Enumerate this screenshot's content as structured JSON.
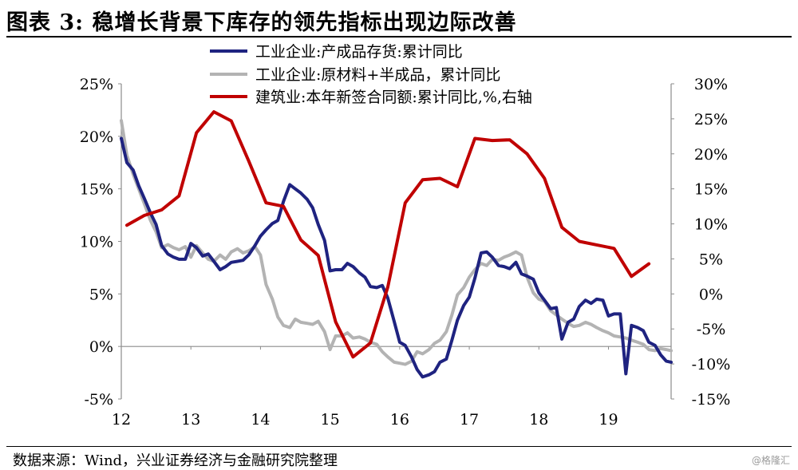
{
  "header": {
    "title": "图表 3:  稳增长背景下库存的领先指标出现边际改善"
  },
  "footer": {
    "source": "数据来源：Wind，兴业证券经济与金融研究院整理",
    "watermark": "@格隆汇"
  },
  "colors": {
    "navy": "#1f2380",
    "gray": "#b3b3b3",
    "red": "#c00000"
  },
  "chart_data": {
    "type": "line",
    "title": "",
    "x_tick_labels": [
      "12",
      "13",
      "14",
      "15",
      "16",
      "17",
      "18",
      "19"
    ],
    "x_range": [
      2012.0,
      2019.9
    ],
    "y_left": {
      "range": [
        -5,
        25
      ],
      "ticks": [
        -5,
        0,
        5,
        10,
        15,
        20,
        25
      ],
      "tick_labels": [
        "-5%",
        "0%",
        "5%",
        "10%",
        "15%",
        "20%",
        "25%"
      ]
    },
    "y_right": {
      "range": [
        -15,
        30
      ],
      "ticks": [
        -15,
        -10,
        -5,
        0,
        5,
        10,
        15,
        20,
        25,
        30
      ],
      "tick_labels": [
        "-15%",
        "-10%",
        "-5%",
        "0%",
        "5%",
        "10%",
        "15%",
        "20%",
        "25%",
        "30%"
      ]
    },
    "legend_position": "top",
    "series": [
      {
        "name": "工业企业:产成品存货:累计同比",
        "axis": "left",
        "color": "#1f2380",
        "points": [
          [
            2012.0,
            19.8
          ],
          [
            2012.08,
            17.5
          ],
          [
            2012.17,
            16.8
          ],
          [
            2012.25,
            15.3
          ],
          [
            2012.33,
            14.1
          ],
          [
            2012.42,
            12.7
          ],
          [
            2012.5,
            11.6
          ],
          [
            2012.58,
            9.6
          ],
          [
            2012.67,
            8.8
          ],
          [
            2012.75,
            8.5
          ],
          [
            2012.83,
            8.3
          ],
          [
            2012.92,
            8.3
          ],
          [
            2013.0,
            9.8
          ],
          [
            2013.08,
            9.4
          ],
          [
            2013.17,
            8.6
          ],
          [
            2013.25,
            8.8
          ],
          [
            2013.33,
            8.1
          ],
          [
            2013.42,
            7.3
          ],
          [
            2013.5,
            7.6
          ],
          [
            2013.58,
            8.0
          ],
          [
            2013.67,
            8.1
          ],
          [
            2013.75,
            8.2
          ],
          [
            2013.83,
            8.7
          ],
          [
            2013.92,
            9.6
          ],
          [
            2014.0,
            10.5
          ],
          [
            2014.08,
            11.1
          ],
          [
            2014.17,
            11.7
          ],
          [
            2014.25,
            12.0
          ],
          [
            2014.33,
            13.8
          ],
          [
            2014.42,
            15.4
          ],
          [
            2014.5,
            15.0
          ],
          [
            2014.58,
            14.6
          ],
          [
            2014.67,
            14.0
          ],
          [
            2014.75,
            13.2
          ],
          [
            2014.83,
            11.6
          ],
          [
            2014.92,
            10.1
          ],
          [
            2015.0,
            7.2
          ],
          [
            2015.08,
            7.3
          ],
          [
            2015.17,
            7.3
          ],
          [
            2015.25,
            7.9
          ],
          [
            2015.33,
            7.6
          ],
          [
            2015.42,
            7.0
          ],
          [
            2015.5,
            6.6
          ],
          [
            2015.58,
            5.7
          ],
          [
            2015.67,
            5.6
          ],
          [
            2015.75,
            5.8
          ],
          [
            2015.83,
            4.6
          ],
          [
            2015.92,
            2.4
          ],
          [
            2016.0,
            0.4
          ],
          [
            2016.08,
            0.1
          ],
          [
            2016.17,
            -1.0
          ],
          [
            2016.25,
            -2.2
          ],
          [
            2016.33,
            -2.9
          ],
          [
            2016.42,
            -2.7
          ],
          [
            2016.5,
            -2.4
          ],
          [
            2016.58,
            -1.5
          ],
          [
            2016.67,
            -1.2
          ],
          [
            2016.75,
            0.6
          ],
          [
            2016.83,
            2.5
          ],
          [
            2016.92,
            3.9
          ],
          [
            2017.0,
            4.7
          ],
          [
            2017.08,
            6.5
          ],
          [
            2017.17,
            8.9
          ],
          [
            2017.25,
            9.0
          ],
          [
            2017.33,
            8.5
          ],
          [
            2017.42,
            7.7
          ],
          [
            2017.5,
            7.6
          ],
          [
            2017.58,
            7.4
          ],
          [
            2017.67,
            8.0
          ],
          [
            2017.75,
            6.9
          ],
          [
            2017.83,
            6.7
          ],
          [
            2017.92,
            6.4
          ],
          [
            2018.0,
            5.1
          ],
          [
            2018.08,
            4.4
          ],
          [
            2018.17,
            3.6
          ],
          [
            2018.25,
            3.7
          ],
          [
            2018.33,
            0.7
          ],
          [
            2018.42,
            2.3
          ],
          [
            2018.5,
            2.6
          ],
          [
            2018.58,
            3.8
          ],
          [
            2018.67,
            4.4
          ],
          [
            2018.75,
            4.1
          ],
          [
            2018.83,
            4.5
          ],
          [
            2018.92,
            4.4
          ],
          [
            2019.0,
            2.9
          ],
          [
            2019.08,
            3.1
          ],
          [
            2019.17,
            3.1
          ],
          [
            2019.25,
            -2.6
          ],
          [
            2019.33,
            2.0
          ],
          [
            2019.42,
            1.8
          ],
          [
            2019.5,
            1.5
          ],
          [
            2019.58,
            0.4
          ],
          [
            2019.67,
            0.1
          ],
          [
            2019.75,
            -0.8
          ],
          [
            2019.83,
            -1.4
          ],
          [
            2019.9,
            -1.5
          ]
        ]
      },
      {
        "name": "工业企业:原材料+半成品，累计同比",
        "axis": "left",
        "color": "#b3b3b3",
        "points": [
          [
            2012.0,
            21.5
          ],
          [
            2012.08,
            18.2
          ],
          [
            2012.17,
            16.4
          ],
          [
            2012.25,
            15.0
          ],
          [
            2012.33,
            13.6
          ],
          [
            2012.42,
            12.0
          ],
          [
            2012.5,
            10.9
          ],
          [
            2012.58,
            9.4
          ],
          [
            2012.67,
            9.7
          ],
          [
            2012.75,
            9.4
          ],
          [
            2012.83,
            9.2
          ],
          [
            2012.92,
            9.5
          ],
          [
            2013.0,
            8.5
          ],
          [
            2013.08,
            9.6
          ],
          [
            2013.17,
            8.9
          ],
          [
            2013.25,
            8.3
          ],
          [
            2013.33,
            8.1
          ],
          [
            2013.42,
            8.7
          ],
          [
            2013.5,
            8.3
          ],
          [
            2013.58,
            9.0
          ],
          [
            2013.67,
            9.3
          ],
          [
            2013.75,
            8.9
          ],
          [
            2013.83,
            9.1
          ],
          [
            2013.92,
            9.5
          ],
          [
            2014.0,
            8.7
          ],
          [
            2014.08,
            5.9
          ],
          [
            2014.17,
            4.5
          ],
          [
            2014.25,
            2.8
          ],
          [
            2014.33,
            2.0
          ],
          [
            2014.42,
            1.8
          ],
          [
            2014.5,
            2.6
          ],
          [
            2014.58,
            2.3
          ],
          [
            2014.67,
            2.2
          ],
          [
            2014.75,
            2.1
          ],
          [
            2014.83,
            2.4
          ],
          [
            2014.92,
            1.4
          ],
          [
            2015.0,
            -0.3
          ],
          [
            2015.08,
            1.0
          ],
          [
            2015.17,
            1.0
          ],
          [
            2015.25,
            1.3
          ],
          [
            2015.33,
            0.8
          ],
          [
            2015.42,
            0.9
          ],
          [
            2015.5,
            0.7
          ],
          [
            2015.58,
            0.4
          ],
          [
            2015.67,
            0.2
          ],
          [
            2015.75,
            -0.5
          ],
          [
            2015.83,
            -1.0
          ],
          [
            2015.92,
            -1.5
          ],
          [
            2016.0,
            -1.6
          ],
          [
            2016.08,
            -1.7
          ],
          [
            2016.17,
            -1.4
          ],
          [
            2016.25,
            -0.5
          ],
          [
            2016.33,
            -0.7
          ],
          [
            2016.42,
            -0.3
          ],
          [
            2016.5,
            0.3
          ],
          [
            2016.58,
            0.6
          ],
          [
            2016.67,
            1.4
          ],
          [
            2016.75,
            3.0
          ],
          [
            2016.83,
            4.9
          ],
          [
            2016.92,
            5.6
          ],
          [
            2017.0,
            6.6
          ],
          [
            2017.08,
            7.3
          ],
          [
            2017.17,
            7.9
          ],
          [
            2017.25,
            7.7
          ],
          [
            2017.33,
            8.3
          ],
          [
            2017.42,
            8.2
          ],
          [
            2017.5,
            8.5
          ],
          [
            2017.58,
            8.7
          ],
          [
            2017.67,
            9.0
          ],
          [
            2017.75,
            8.7
          ],
          [
            2017.83,
            6.6
          ],
          [
            2017.92,
            5.1
          ],
          [
            2018.0,
            4.5
          ],
          [
            2018.08,
            4.3
          ],
          [
            2018.17,
            3.4
          ],
          [
            2018.25,
            3.0
          ],
          [
            2018.33,
            2.6
          ],
          [
            2018.42,
            2.2
          ],
          [
            2018.5,
            1.9
          ],
          [
            2018.58,
            2.0
          ],
          [
            2018.67,
            2.3
          ],
          [
            2018.75,
            2.1
          ],
          [
            2018.83,
            1.8
          ],
          [
            2018.92,
            1.5
          ],
          [
            2019.0,
            1.3
          ],
          [
            2019.08,
            1.0
          ],
          [
            2019.17,
            0.9
          ],
          [
            2019.25,
            0.8
          ],
          [
            2019.33,
            0.6
          ],
          [
            2019.42,
            0.4
          ],
          [
            2019.5,
            0.2
          ],
          [
            2019.58,
            -0.3
          ],
          [
            2019.67,
            -0.4
          ],
          [
            2019.75,
            -0.2
          ],
          [
            2019.83,
            -0.3
          ],
          [
            2019.9,
            -0.4
          ]
        ]
      },
      {
        "name": "建筑业:本年新签合同额:累计同比,%,右轴",
        "axis": "right",
        "color": "#c00000",
        "points": [
          [
            2012.08,
            9.8
          ],
          [
            2012.33,
            11.2
          ],
          [
            2012.58,
            12.0
          ],
          [
            2012.83,
            14.0
          ],
          [
            2013.08,
            23.0
          ],
          [
            2013.33,
            26.0
          ],
          [
            2013.58,
            24.7
          ],
          [
            2013.83,
            19.0
          ],
          [
            2014.08,
            13.0
          ],
          [
            2014.33,
            12.5
          ],
          [
            2014.58,
            7.7
          ],
          [
            2014.83,
            5.5
          ],
          [
            2015.08,
            -4.0
          ],
          [
            2015.33,
            -9.0
          ],
          [
            2015.58,
            -7.0
          ],
          [
            2015.83,
            1.0
          ],
          [
            2016.08,
            13.0
          ],
          [
            2016.33,
            16.3
          ],
          [
            2016.58,
            16.5
          ],
          [
            2016.83,
            15.3
          ],
          [
            2017.08,
            22.2
          ],
          [
            2017.33,
            21.9
          ],
          [
            2017.58,
            22.0
          ],
          [
            2017.83,
            20.0
          ],
          [
            2018.08,
            16.5
          ],
          [
            2018.33,
            9.5
          ],
          [
            2018.58,
            7.5
          ],
          [
            2018.83,
            7.0
          ],
          [
            2019.08,
            6.5
          ],
          [
            2019.33,
            2.5
          ],
          [
            2019.58,
            4.3
          ]
        ]
      }
    ]
  }
}
